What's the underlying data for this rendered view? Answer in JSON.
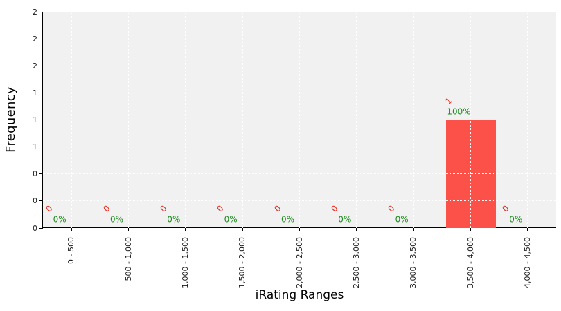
{
  "chart_data": {
    "type": "bar",
    "title": "",
    "xlabel": "iRating Ranges",
    "ylabel": "Frequency",
    "categories": [
      "0 - 500",
      "500 - 1,000",
      "1,000 - 1,500",
      "1,500 - 2,000",
      "2,000 - 2,500",
      "2,500 - 3,000",
      "3,000 - 3,500",
      "3,500 - 4,000",
      "4,000 - 4,500"
    ],
    "values": [
      0,
      0,
      0,
      0,
      0,
      0,
      0,
      1,
      0
    ],
    "count_labels": [
      "0",
      "0",
      "0",
      "0",
      "0",
      "0",
      "0",
      "1",
      "0"
    ],
    "pct_labels": [
      "0%",
      "0%",
      "0%",
      "0%",
      "0%",
      "0%",
      "0%",
      "100%",
      "0%"
    ],
    "ylim": [
      0,
      2
    ],
    "ytick_step": 0.25,
    "ytick_labels_bottom_to_top": [
      "0",
      "0",
      "0",
      "1",
      "1",
      "1",
      "2",
      "2",
      "2"
    ],
    "grid": true,
    "legend": null,
    "count_label_rotation_deg": -45
  },
  "colors": {
    "bar": "#fb5148",
    "count_label": "#e8291d",
    "pct_label": "#1f8c1f",
    "plot_bg": "#f1f1f1",
    "grid": "#ffffff",
    "axis": "#000000",
    "tick_label": "#1a1a1a",
    "figure_bg": "#ffffff"
  }
}
